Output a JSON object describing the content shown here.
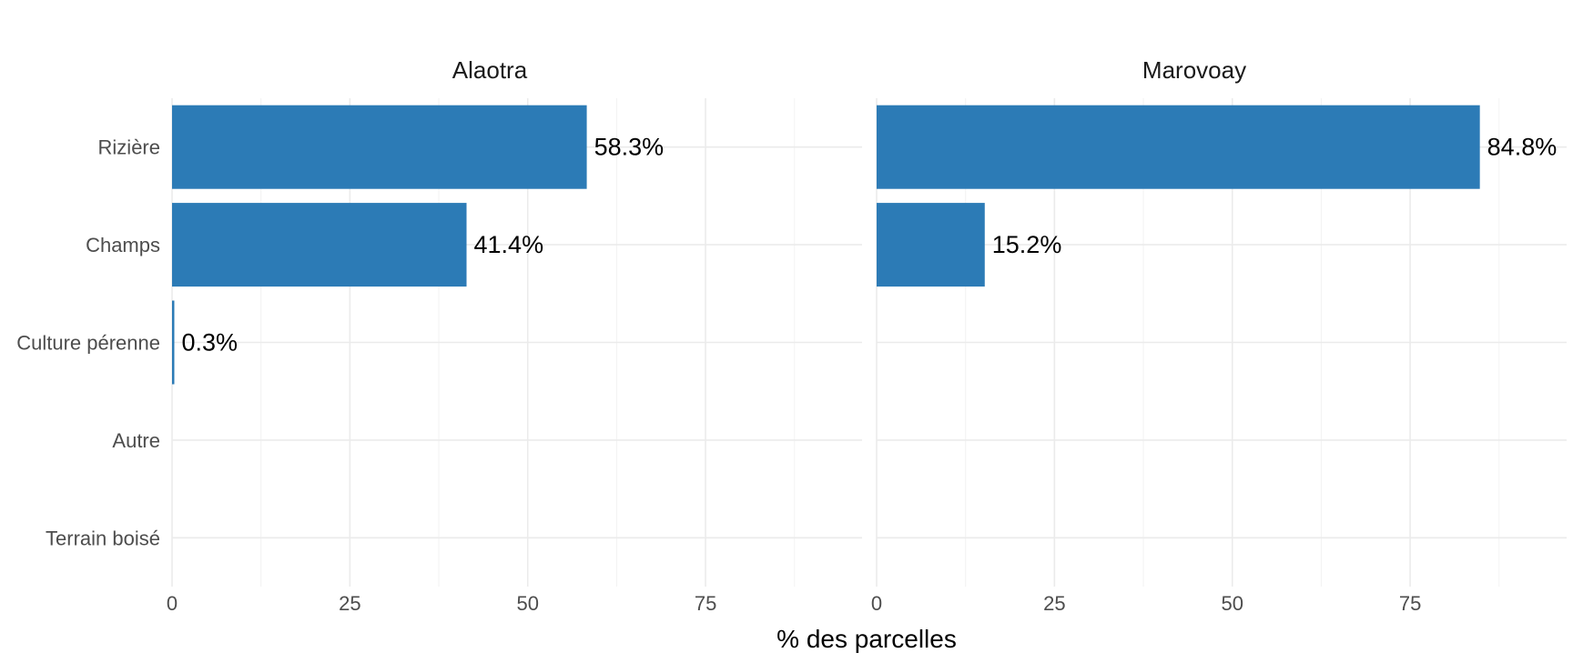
{
  "chart_data": {
    "type": "bar",
    "orientation": "horizontal",
    "categories": [
      "Rizière",
      "Champs",
      "Culture pérenne",
      "Autre",
      "Terrain boisé"
    ],
    "xlabel": "% des parcelles",
    "ylabel": "",
    "xlim": [
      0,
      97
    ],
    "xticks": [
      0,
      25,
      50,
      75
    ],
    "grid": true,
    "bar_color": "#2c7bb6",
    "facets": [
      {
        "name": "Alaotra",
        "values": [
          58.3,
          41.4,
          0.3,
          null,
          null
        ],
        "labels": [
          "58.3%",
          "41.4%",
          "0.3%",
          "",
          ""
        ]
      },
      {
        "name": "Marovoay",
        "values": [
          84.8,
          15.2,
          null,
          null,
          null
        ],
        "labels": [
          "84.8%",
          "15.2%",
          "",
          "",
          ""
        ]
      }
    ]
  }
}
